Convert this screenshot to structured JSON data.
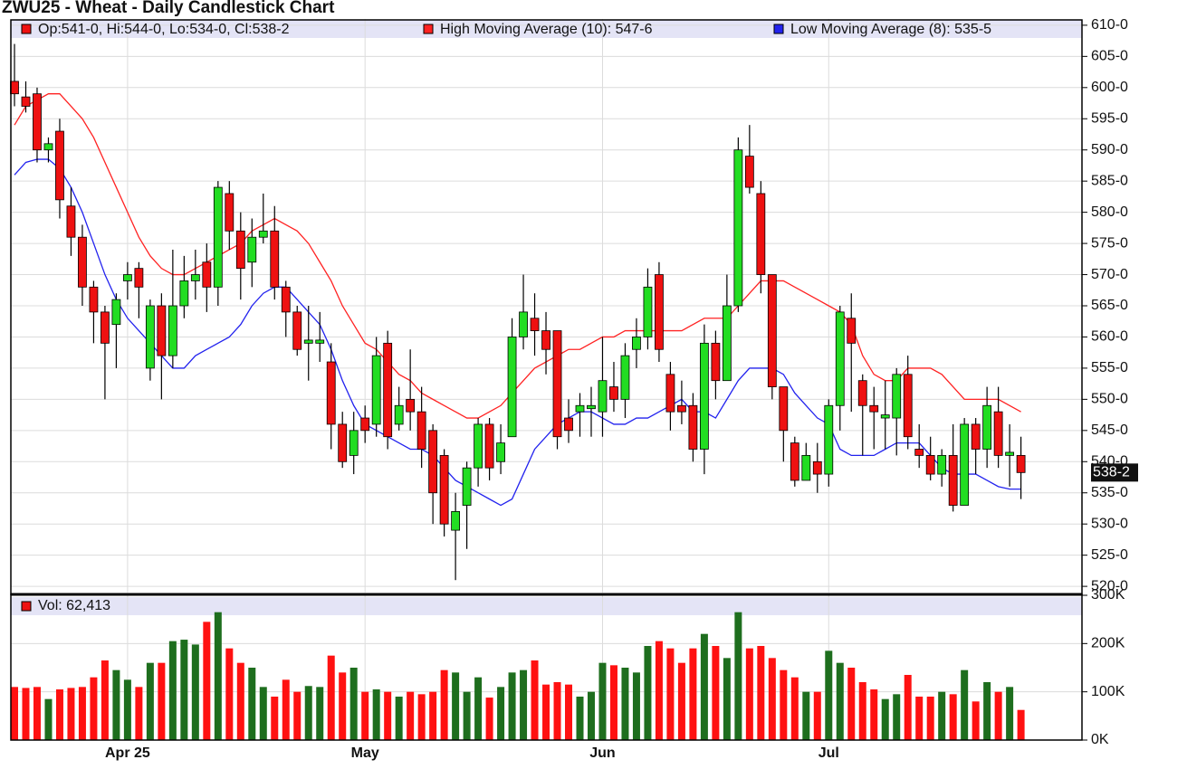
{
  "chart_data": {
    "type": "candlestick",
    "title": "ZWU25 - Wheat - Daily Candlestick Chart",
    "ohlc_label": "Op:541-0, Hi:544-0, Lo:534-0, Cl:538-2",
    "volume_label": "Vol: 62,413",
    "categories": [
      null,
      null,
      null,
      null,
      null,
      null,
      null,
      null,
      null,
      null,
      "Apr 25",
      null,
      null,
      null,
      null,
      null,
      null,
      null,
      null,
      null,
      null,
      null,
      null,
      null,
      null,
      null,
      null,
      null,
      null,
      null,
      null,
      "May",
      null,
      null,
      null,
      null,
      null,
      null,
      null,
      null,
      null,
      null,
      null,
      null,
      null,
      null,
      null,
      null,
      null,
      null,
      null,
      null,
      "Jun",
      null,
      null,
      null,
      null,
      null,
      null,
      null,
      null,
      null,
      null,
      null,
      null,
      null,
      null,
      null,
      null,
      null,
      null,
      null,
      "Jul",
      null,
      null,
      null,
      null,
      null,
      null,
      null,
      null,
      null,
      null,
      null,
      null,
      null,
      null,
      null,
      null,
      null
    ],
    "open": [
      601,
      598.5,
      599,
      590,
      593,
      581,
      576,
      568,
      564,
      562,
      569,
      571,
      555,
      565,
      557,
      565,
      569,
      572,
      568,
      583,
      577,
      572,
      576,
      577,
      568,
      564,
      559,
      559,
      556,
      546,
      541,
      547,
      546,
      559,
      546,
      550,
      548,
      545,
      541,
      529,
      533,
      539,
      546,
      540,
      544,
      560,
      563,
      561,
      561,
      547,
      548,
      548.5,
      548,
      552,
      550,
      558,
      560,
      570,
      554,
      549,
      549,
      542,
      559,
      553,
      565,
      589,
      583,
      570,
      552,
      543,
      537,
      540,
      538,
      549,
      563,
      553,
      549,
      547,
      547,
      554,
      542,
      541,
      538,
      541,
      533,
      546,
      542,
      548,
      541,
      541
    ],
    "high": [
      607,
      601,
      600,
      592,
      595,
      584,
      578,
      569,
      565,
      567,
      572,
      572,
      566,
      567,
      574,
      573,
      574,
      575,
      585,
      585,
      580,
      579,
      583,
      581,
      569,
      565,
      565,
      564,
      559,
      548,
      548,
      549,
      560,
      561,
      552,
      558,
      552,
      546,
      542,
      535,
      540,
      547,
      547,
      546,
      563,
      570,
      567,
      564,
      561,
      550,
      551,
      552,
      560,
      556,
      559,
      563,
      571,
      572,
      556,
      553,
      551,
      562,
      561,
      570,
      592,
      594,
      585,
      570,
      552,
      544,
      543,
      543,
      550,
      565,
      567,
      554,
      552,
      553,
      555,
      557,
      546,
      544,
      542,
      546,
      547,
      547,
      552,
      552,
      546,
      544
    ],
    "low": [
      597,
      596,
      588,
      588,
      579,
      573,
      565,
      559,
      550,
      555,
      566,
      563,
      553,
      550,
      555,
      563,
      566,
      564,
      565,
      574,
      566,
      568,
      575,
      566,
      560,
      557,
      553,
      556,
      542,
      539,
      538,
      543,
      544,
      542,
      545,
      545,
      539,
      530,
      528,
      521,
      526,
      536,
      537,
      538,
      544,
      558,
      557,
      554,
      542,
      543,
      544,
      544,
      544,
      548,
      547,
      555,
      558,
      556,
      545,
      546,
      540,
      538,
      550,
      553,
      564,
      583,
      567,
      550,
      540,
      536,
      537,
      535,
      536,
      545,
      548,
      541,
      542,
      542,
      541,
      542,
      539,
      537,
      536,
      532,
      533,
      538,
      539,
      539,
      536,
      534
    ],
    "close": [
      599,
      597,
      590,
      591,
      582,
      576,
      568,
      564,
      559,
      566,
      570,
      568,
      565,
      557,
      565,
      569,
      570,
      568,
      584,
      577,
      571,
      576,
      577,
      568,
      564,
      558,
      559.5,
      559.5,
      546,
      540,
      545,
      545,
      557,
      544,
      549,
      548,
      542,
      535,
      530,
      532,
      539,
      546,
      539,
      543,
      560,
      564,
      561,
      558,
      544,
      545,
      549,
      549,
      553,
      550,
      557,
      560,
      568,
      558,
      548,
      548,
      542,
      559,
      553,
      565,
      590,
      584,
      570,
      552,
      545,
      537,
      541,
      538,
      549,
      564,
      559,
      549,
      548,
      547.5,
      554,
      544,
      541,
      538,
      541,
      533,
      546,
      542,
      549,
      541,
      541.5,
      538.25
    ],
    "volume": [
      110000,
      108000,
      110000,
      85000,
      105000,
      108000,
      110000,
      130000,
      165000,
      145000,
      125000,
      110000,
      160000,
      160000,
      205000,
      208000,
      198000,
      245000,
      265000,
      190000,
      160000,
      150000,
      110000,
      90000,
      125000,
      100000,
      112000,
      110000,
      175000,
      140000,
      150000,
      100000,
      105000,
      100000,
      90000,
      100000,
      95000,
      100000,
      145000,
      140000,
      100000,
      130000,
      88000,
      110000,
      140000,
      145000,
      165000,
      115000,
      120000,
      115000,
      90000,
      100000,
      160000,
      155000,
      150000,
      140000,
      195000,
      205000,
      190000,
      160000,
      190000,
      220000,
      195000,
      170000,
      265000,
      190000,
      195000,
      170000,
      145000,
      130000,
      100000,
      100000,
      185000,
      160000,
      150000,
      120000,
      105000,
      85000,
      95000,
      135000,
      90000,
      90000,
      100000,
      95000,
      145000,
      80000,
      120000,
      100000,
      110000,
      62413
    ],
    "up_color": "#22dd22",
    "down_color": "#ee1111",
    "volume_up_color": "#1e6e1e",
    "volume_down_color": "#ff1111",
    "series": [
      {
        "name": "High Moving Average (10): 547-6",
        "color": "#ff2222",
        "values": [
          594,
          597,
          598,
          599,
          599,
          597,
          595,
          592,
          588,
          584,
          580,
          576,
          573,
          571,
          570,
          570,
          571,
          572,
          573,
          574,
          575,
          577,
          578,
          579,
          578,
          577,
          575,
          572,
          569,
          565,
          562,
          559,
          558,
          556,
          554,
          553,
          551,
          550,
          549,
          548,
          547,
          547,
          548,
          549,
          551,
          553,
          555,
          556,
          557,
          558,
          558,
          559,
          560,
          560,
          561,
          561,
          561,
          561,
          561,
          561,
          562,
          563,
          563,
          563,
          565,
          567,
          569,
          569,
          569,
          568,
          567,
          566,
          565,
          564,
          562,
          557,
          554,
          553,
          553,
          555,
          555,
          555,
          554,
          552,
          550,
          550,
          550,
          550,
          549,
          548
        ]
      },
      {
        "name": "Low Moving Average (8): 535-5",
        "color": "#2222ee",
        "values": [
          586,
          588,
          588.5,
          588.5,
          587,
          584,
          580,
          575,
          570,
          566,
          563,
          561,
          559,
          557,
          555,
          555,
          557,
          558,
          559,
          560,
          562,
          565,
          567,
          568,
          568,
          566,
          564,
          562,
          558,
          553,
          549,
          546,
          545,
          544,
          543,
          542,
          542,
          541,
          539,
          537,
          536,
          535,
          534,
          533,
          534,
          538,
          542,
          544,
          546,
          547,
          548,
          548,
          547,
          546,
          546,
          547,
          547,
          548,
          549,
          550,
          548,
          548,
          547,
          550,
          553,
          555,
          555,
          555,
          554,
          551,
          549,
          547,
          546,
          542,
          541,
          541,
          541,
          542,
          543,
          543,
          543,
          541,
          539,
          538,
          538,
          538,
          537,
          536,
          535.6,
          535.6
        ]
      }
    ],
    "last_price": {
      "value": 538.25,
      "label": "538-2"
    },
    "ylim": [
      519,
      611
    ],
    "yticks": [
      {
        "value": 610,
        "label": "610-0"
      },
      {
        "value": 605,
        "label": "605-0"
      },
      {
        "value": 600,
        "label": "600-0"
      },
      {
        "value": 595,
        "label": "595-0"
      },
      {
        "value": 590,
        "label": "590-0"
      },
      {
        "value": 585,
        "label": "585-0"
      },
      {
        "value": 580,
        "label": "580-0"
      },
      {
        "value": 575,
        "label": "575-0"
      },
      {
        "value": 570,
        "label": "570-0"
      },
      {
        "value": 565,
        "label": "565-0"
      },
      {
        "value": 560,
        "label": "560-0"
      },
      {
        "value": 555,
        "label": "555-0"
      },
      {
        "value": 550,
        "label": "550-0"
      },
      {
        "value": 545,
        "label": "545-0"
      },
      {
        "value": 540,
        "label": "540-0"
      },
      {
        "value": 535,
        "label": "535-0"
      },
      {
        "value": 530,
        "label": "530-0"
      },
      {
        "value": 525,
        "label": "525-0"
      },
      {
        "value": 520,
        "label": "520-0"
      }
    ],
    "y2lim": [
      0,
      300000
    ],
    "y2ticks": [
      {
        "value": 0,
        "label": "0K"
      },
      {
        "value": 100000,
        "label": "100K"
      },
      {
        "value": 200000,
        "label": "200K"
      },
      {
        "value": 300000,
        "label": "300K"
      }
    ],
    "grid": true
  }
}
